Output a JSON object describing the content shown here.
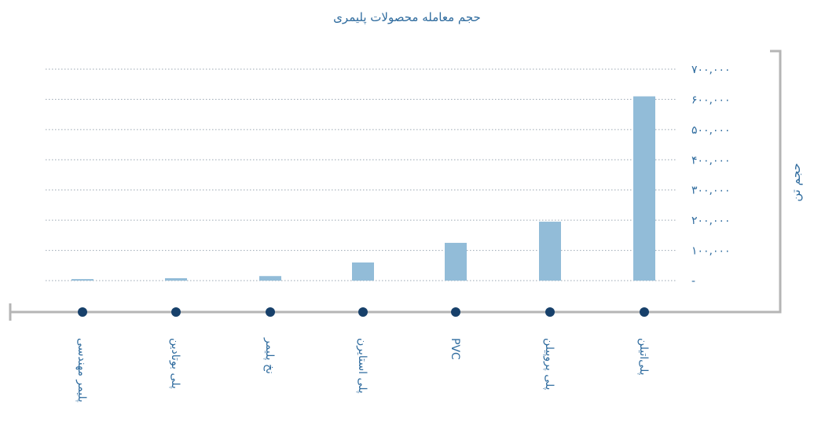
{
  "chart_data": {
    "type": "bar",
    "title": "حجم معامله محصولات پلیمری",
    "ylabel": "حجم تن",
    "xlabel": "",
    "categories": [
      "پلیمر مهندسی",
      "پلی بوتادین",
      "نخ پلیمر",
      "پلی استایرن",
      "PVC",
      "پلی پروپیلن",
      "پلی‌اتیلن"
    ],
    "values": [
      5000,
      8000,
      15000,
      60000,
      125000,
      195000,
      610000
    ],
    "ylim": [
      0,
      700000
    ],
    "yticks": [
      {
        "value": 0,
        "label": "-"
      },
      {
        "value": 100000,
        "label": "۱۰۰,۰۰۰"
      },
      {
        "value": 200000,
        "label": "۲۰۰,۰۰۰"
      },
      {
        "value": 300000,
        "label": "۳۰۰,۰۰۰"
      },
      {
        "value": 400000,
        "label": "۴۰۰,۰۰۰"
      },
      {
        "value": 500000,
        "label": "۵۰۰,۰۰۰"
      },
      {
        "value": 600000,
        "label": "۶۰۰,۰۰۰"
      },
      {
        "value": 700000,
        "label": "۷۰۰,۰۰۰"
      }
    ],
    "grid": true,
    "colors": {
      "bar": "#92bcd8",
      "marker": "#17406a",
      "text": "#2e6b9e",
      "axis": "#b5b5b5"
    }
  }
}
